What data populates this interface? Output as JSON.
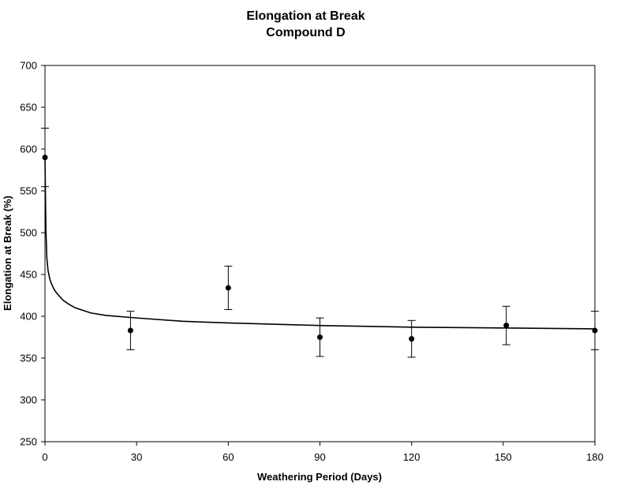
{
  "chart_data": {
    "type": "scatter",
    "title": "Elongation at Break",
    "subtitle": "Compound D",
    "xlabel": "Weathering Period (Days)",
    "ylabel": "Elongation at Break (%)",
    "xlim": [
      0,
      180
    ],
    "ylim": [
      250,
      700
    ],
    "x_ticks": [
      "0",
      "30",
      "60",
      "90",
      "120",
      "150",
      "180"
    ],
    "y_ticks": [
      "250",
      "300",
      "350",
      "400",
      "450",
      "500",
      "550",
      "600",
      "650",
      "700"
    ],
    "grid": false,
    "legend": "none",
    "series": [
      {
        "x": [
          0,
          28,
          60,
          90,
          120,
          151,
          180
        ],
        "y": [
          590,
          383,
          434,
          375,
          373,
          389,
          383
        ],
        "error": [
          35,
          23,
          26,
          23,
          22,
          23,
          23
        ],
        "marker": "circle",
        "color": "#000000"
      }
    ],
    "trendline": {
      "type": "power fit",
      "x": [
        0,
        0.1,
        0.3,
        0.6,
        1,
        1.5,
        2,
        3,
        4,
        6,
        8,
        10,
        15,
        20,
        30,
        45,
        60,
        90,
        120,
        150,
        180
      ],
      "y": [
        590,
        560,
        505,
        470,
        455,
        446,
        440,
        432,
        427,
        419,
        414,
        410,
        404,
        401,
        398,
        394,
        392,
        389,
        387,
        386,
        385
      ],
      "color": "#000000"
    }
  }
}
